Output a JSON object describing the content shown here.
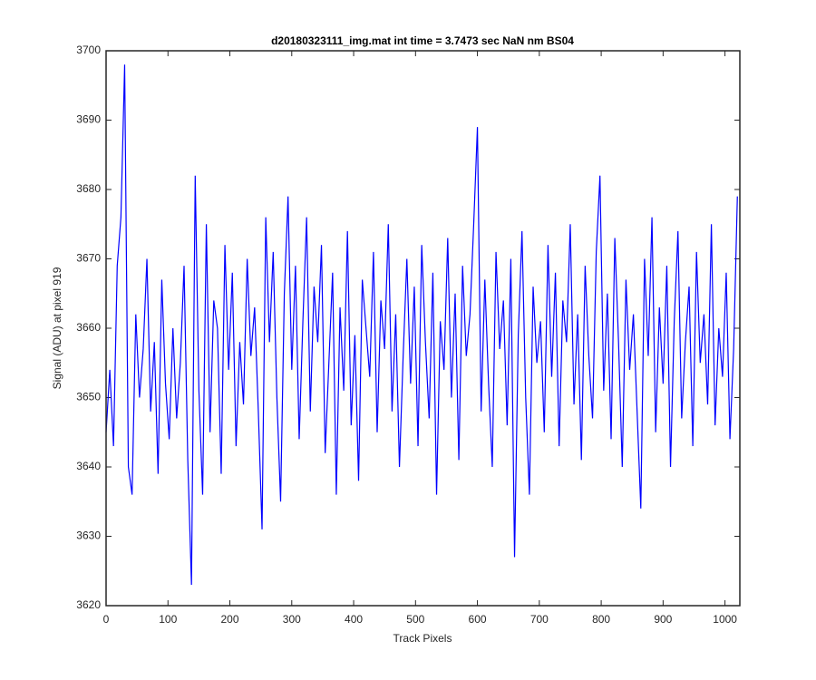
{
  "chart_data": {
    "type": "line",
    "title": "d20180323111_img.mat int time = 3.7473 sec  NaN nm BS04",
    "x_label": "Track Pixels",
    "y_label": "Signal (ADU) at pixel 919",
    "xlim": [
      0,
      1024
    ],
    "ylim": [
      3620,
      3700
    ],
    "xticks": [
      0,
      100,
      200,
      300,
      400,
      500,
      600,
      700,
      800,
      900,
      1000
    ],
    "yticks": [
      3620,
      3630,
      3640,
      3650,
      3660,
      3670,
      3680,
      3690,
      3700
    ],
    "grid": false,
    "x": [
      0,
      6,
      12,
      18,
      24,
      30,
      36,
      42,
      48,
      54,
      60,
      66,
      72,
      78,
      84,
      90,
      96,
      102,
      108,
      114,
      120,
      126,
      132,
      138,
      144,
      150,
      156,
      162,
      168,
      174,
      180,
      186,
      192,
      198,
      204,
      210,
      216,
      222,
      228,
      234,
      240,
      246,
      252,
      258,
      264,
      270,
      276,
      282,
      288,
      294,
      300,
      306,
      312,
      318,
      324,
      330,
      336,
      342,
      348,
      354,
      360,
      366,
      372,
      378,
      384,
      390,
      396,
      402,
      408,
      414,
      420,
      426,
      432,
      438,
      444,
      450,
      456,
      462,
      468,
      474,
      480,
      486,
      492,
      498,
      504,
      510,
      516,
      522,
      528,
      534,
      540,
      546,
      552,
      558,
      564,
      570,
      576,
      582,
      588,
      594,
      600,
      606,
      612,
      618,
      624,
      630,
      636,
      642,
      648,
      654,
      660,
      666,
      672,
      678,
      684,
      690,
      696,
      702,
      708,
      714,
      720,
      726,
      732,
      738,
      744,
      750,
      756,
      762,
      768,
      774,
      780,
      786,
      792,
      798,
      804,
      810,
      816,
      822,
      828,
      834,
      840,
      846,
      852,
      858,
      864,
      870,
      876,
      882,
      888,
      894,
      900,
      906,
      912,
      918,
      924,
      930,
      936,
      942,
      948,
      954,
      960,
      966,
      972,
      978,
      984,
      990,
      996,
      1002,
      1008,
      1014,
      1020
    ],
    "series": [
      {
        "name": "Signal",
        "color": "#0000ff",
        "values": [
          3645,
          3654,
          3643,
          3669,
          3676,
          3698,
          3640,
          3636,
          3662,
          3650,
          3657,
          3670,
          3648,
          3658,
          3639,
          3667,
          3652,
          3644,
          3660,
          3647,
          3655,
          3669,
          3641,
          3623,
          3682,
          3651,
          3636,
          3675,
          3645,
          3664,
          3660,
          3639,
          3672,
          3654,
          3668,
          3643,
          3658,
          3649,
          3670,
          3656,
          3663,
          3648,
          3631,
          3676,
          3658,
          3671,
          3650,
          3635,
          3665,
          3679,
          3654,
          3669,
          3644,
          3661,
          3676,
          3648,
          3666,
          3658,
          3672,
          3642,
          3655,
          3668,
          3636,
          3663,
          3651,
          3674,
          3646,
          3659,
          3638,
          3667,
          3660,
          3653,
          3671,
          3645,
          3664,
          3657,
          3675,
          3648,
          3662,
          3640,
          3656,
          3670,
          3652,
          3666,
          3643,
          3672,
          3658,
          3647,
          3668,
          3636,
          3661,
          3654,
          3673,
          3650,
          3665,
          3641,
          3669,
          3656,
          3662,
          3675,
          3689,
          3648,
          3667,
          3652,
          3640,
          3671,
          3657,
          3664,
          3646,
          3670,
          3627,
          3659,
          3674,
          3650,
          3636,
          3666,
          3655,
          3661,
          3645,
          3672,
          3653,
          3668,
          3643,
          3664,
          3658,
          3675,
          3649,
          3662,
          3641,
          3669,
          3656,
          3647,
          3671,
          3682,
          3651,
          3665,
          3644,
          3673,
          3658,
          3640,
          3667,
          3654,
          3662,
          3648,
          3634,
          3670,
          3656,
          3676,
          3645,
          3663,
          3652,
          3669,
          3640,
          3661,
          3674,
          3647,
          3658,
          3666,
          3643,
          3671,
          3655,
          3662,
          3649,
          3675,
          3646,
          3660,
          3653,
          3668,
          3644,
          3657,
          3679
        ]
      }
    ]
  }
}
